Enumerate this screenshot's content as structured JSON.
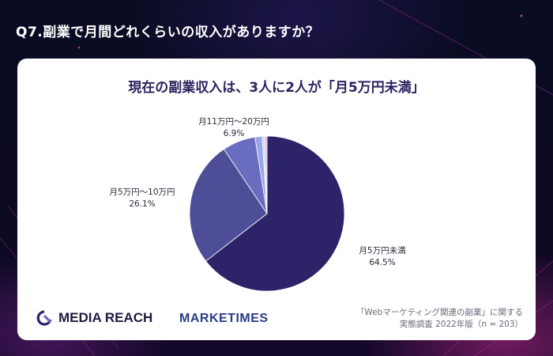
{
  "question": "Q7.副業で月間どれくらいの収入がありますか？",
  "headline": "現在の副業収入は、3人に2人が「月5万円未満」",
  "colors": {
    "slice_main": "#2d2368",
    "slice_second": "#4e4d98",
    "slice_third": "#6a6cbf",
    "slice_small1": "#9aa7e6",
    "slice_small2": "#c7d6f6",
    "slice_small3": "#e6b6d8",
    "headline": "#2b2560"
  },
  "chart_data": {
    "type": "pie",
    "title": "現在の副業収入は、3人に2人が「月5万円未満」",
    "slices": [
      {
        "label": "月5万円未満",
        "value": 64.5,
        "value_label": "64.5%",
        "labeled": true
      },
      {
        "label": "月5万円〜10万円",
        "value": 26.1,
        "value_label": "26.1%",
        "labeled": true
      },
      {
        "label": "月11万円〜20万円",
        "value": 6.9,
        "value_label": "6.9%",
        "labeled": true
      },
      {
        "label": "",
        "value": 1.5,
        "value_label": "",
        "labeled": false
      },
      {
        "label": "",
        "value": 0.5,
        "value_label": "",
        "labeled": false
      },
      {
        "label": "",
        "value": 0.5,
        "value_label": "",
        "labeled": false
      }
    ]
  },
  "logos": {
    "media_reach": "MEDIA REACH",
    "marketimes": "MARKETIMES"
  },
  "source": {
    "line1": "「Webマーケティング関連の副業」に関する",
    "line2": "実態調査 2022年版（n = 203）"
  }
}
